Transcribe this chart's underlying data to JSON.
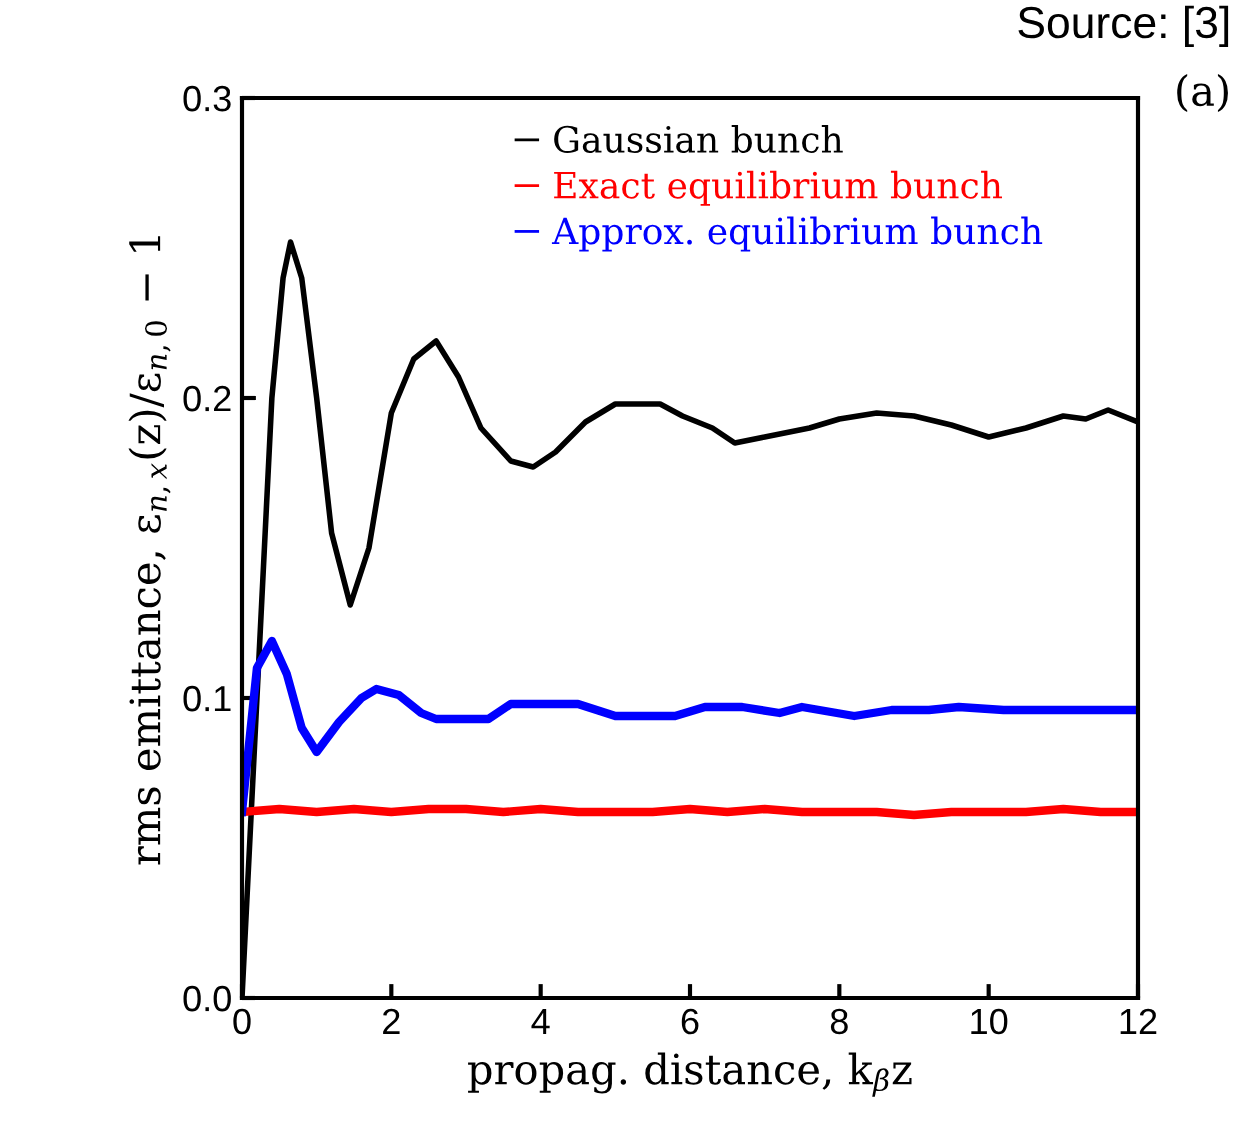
{
  "chart_data": {
    "type": "line",
    "xlabel": "propag. distance, k$_{β}$z",
    "ylabel": "rms emittance, ε$_{n,x}$(z)/ε$_{n,0}$ − 1",
    "annotations": [
      "(a)",
      "Source: [3]"
    ],
    "xlim": [
      0,
      12
    ],
    "ylim": [
      0,
      0.3
    ],
    "xticks": [
      0,
      2,
      4,
      6,
      8,
      10,
      12
    ],
    "yticks": [
      {
        "value": 0,
        "label": "0.0"
      },
      0.1,
      0.2,
      0.3
    ],
    "grid": false,
    "legend": "top",
    "marker": "none",
    "line_style": "solid",
    "series": [
      {
        "name": "Gaussian bunch",
        "color": "#000000",
        "x": [
          0,
          0.2,
          0.4,
          0.55,
          0.65,
          0.8,
          1.0,
          1.2,
          1.45,
          1.7,
          2.0,
          2.3,
          2.6,
          2.9,
          3.2,
          3.6,
          3.9,
          4.2,
          4.6,
          5.0,
          5.6,
          5.9,
          6.3,
          6.6,
          7.0,
          7.6,
          8.0,
          8.5,
          9.0,
          9.5,
          10.0,
          10.5,
          11.0,
          11.3,
          11.6,
          12.0
        ],
        "values": [
          0,
          0.1,
          0.2,
          0.24,
          0.252,
          0.24,
          0.2,
          0.155,
          0.131,
          0.15,
          0.195,
          0.213,
          0.219,
          0.207,
          0.19,
          0.179,
          0.177,
          0.182,
          0.192,
          0.198,
          0.198,
          0.194,
          0.19,
          0.185,
          0.187,
          0.19,
          0.193,
          0.195,
          0.194,
          0.191,
          0.187,
          0.19,
          0.194,
          0.193,
          0.196,
          0.192
        ]
      },
      {
        "name": "Exact equilibrium bunch",
        "color": "#ff0000",
        "x": [
          0,
          0.5,
          1,
          1.5,
          2,
          2.5,
          3,
          3.5,
          4,
          4.5,
          5,
          5.5,
          6,
          6.5,
          7,
          7.5,
          8,
          8.5,
          9,
          9.5,
          10,
          10.5,
          11,
          11.5,
          12
        ],
        "values": [
          0.062,
          0.063,
          0.062,
          0.063,
          0.062,
          0.063,
          0.063,
          0.062,
          0.063,
          0.062,
          0.062,
          0.062,
          0.063,
          0.062,
          0.063,
          0.062,
          0.062,
          0.062,
          0.061,
          0.062,
          0.062,
          0.062,
          0.063,
          0.062,
          0.062
        ]
      },
      {
        "name": "Approx. equilibrium bunch",
        "color": "#0000ff",
        "x": [
          0,
          0.2,
          0.4,
          0.6,
          0.8,
          1.0,
          1.3,
          1.6,
          1.8,
          2.1,
          2.4,
          2.6,
          3.0,
          3.3,
          3.6,
          4.0,
          4.5,
          5.0,
          5.5,
          5.8,
          6.2,
          6.7,
          7.2,
          7.5,
          8.2,
          8.7,
          9.2,
          9.6,
          10.2,
          10.8,
          11.5,
          12.0
        ],
        "values": [
          0.062,
          0.11,
          0.119,
          0.108,
          0.09,
          0.082,
          0.092,
          0.1,
          0.103,
          0.101,
          0.095,
          0.093,
          0.093,
          0.093,
          0.098,
          0.098,
          0.098,
          0.094,
          0.094,
          0.094,
          0.097,
          0.097,
          0.095,
          0.097,
          0.094,
          0.096,
          0.096,
          0.097,
          0.096,
          0.096,
          0.096,
          0.096
        ]
      }
    ]
  }
}
